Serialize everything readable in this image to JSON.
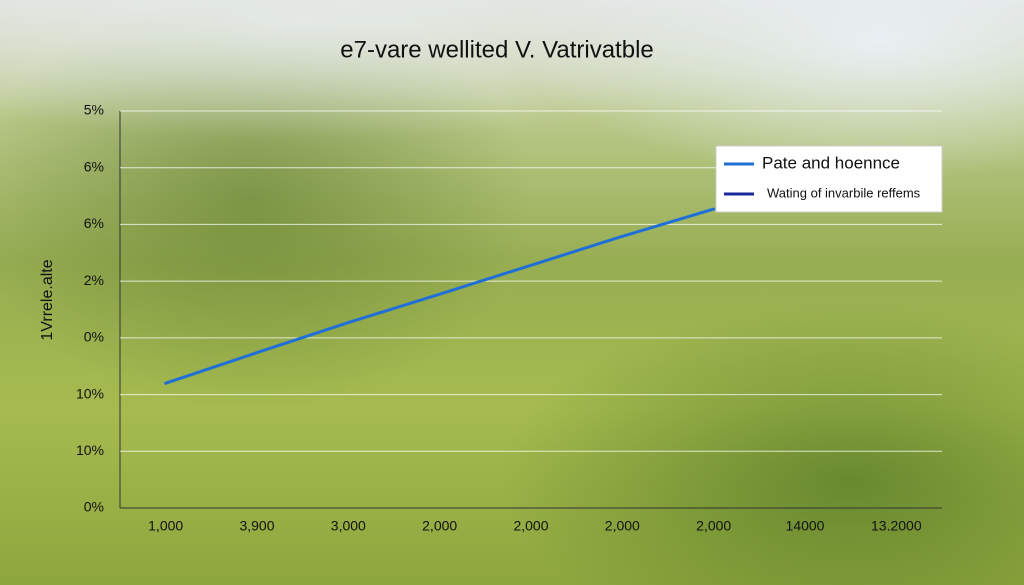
{
  "chart_data": {
    "type": "line",
    "title": "e7-vare wellited V. Vatrivatble",
    "y_label": "1Vrrele.alte",
    "categories": [
      "1,000",
      "3,900",
      "3,000",
      "2,000",
      "2,000",
      "2,000",
      "2,000",
      "14000",
      "13.2000"
    ],
    "series": [
      {
        "name": "Pate and hoennce",
        "color": "#1f6fd6",
        "values": [
          2.2,
          2.74,
          3.27,
          3.77,
          4.28,
          4.79,
          5.27,
          null,
          null
        ]
      },
      {
        "name": "Wating of invarbile reffems",
        "color": "#1a2a9e",
        "values": [
          null,
          null,
          null,
          null,
          null,
          null,
          null,
          null,
          null
        ]
      }
    ],
    "ylim": [
      0,
      7
    ],
    "yticks": [
      {
        "value": 0,
        "label": "0%"
      },
      {
        "value": 1,
        "label": "10%"
      },
      {
        "value": 2,
        "label": "10%"
      },
      {
        "value": 3,
        "label": "0%"
      },
      {
        "value": 4,
        "label": "2%"
      },
      {
        "value": 5,
        "label": "6%"
      },
      {
        "value": 6,
        "label": "6%"
      },
      {
        "value": 7,
        "label": "5%"
      }
    ],
    "grid": true
  }
}
